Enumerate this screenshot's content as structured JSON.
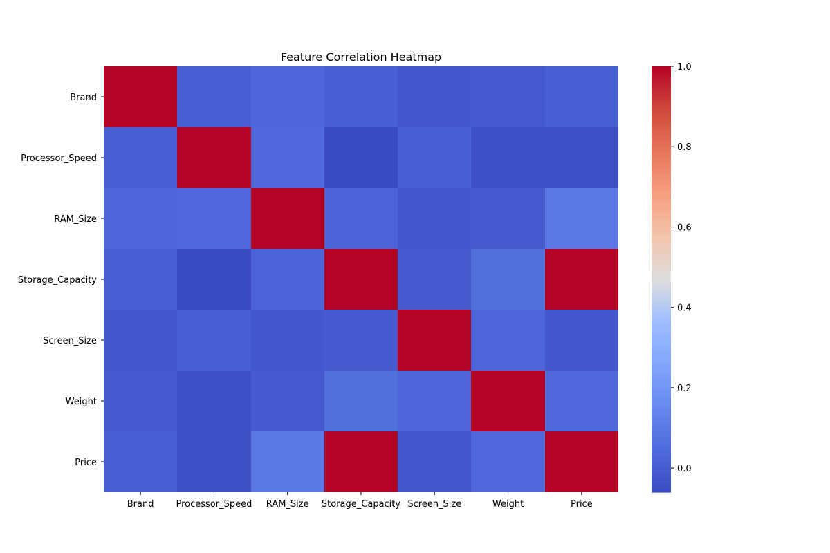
{
  "chart_data": {
    "type": "heatmap",
    "title": "Feature Correlation Heatmap",
    "xlabel": "",
    "ylabel": "",
    "colormap": "coolwarm",
    "x_categories": [
      "Brand",
      "Processor_Speed",
      "RAM_Size",
      "Storage_Capacity",
      "Screen_Size",
      "Weight",
      "Price"
    ],
    "y_categories": [
      "Brand",
      "Processor_Speed",
      "RAM_Size",
      "Storage_Capacity",
      "Screen_Size",
      "Weight",
      "Price"
    ],
    "matrix": [
      [
        1.0,
        0.01,
        0.03,
        0.01,
        -0.02,
        -0.01,
        0.01
      ],
      [
        0.01,
        1.0,
        0.04,
        -0.06,
        0.01,
        -0.05,
        -0.05
      ],
      [
        0.03,
        0.04,
        1.0,
        0.02,
        -0.02,
        -0.01,
        0.09
      ],
      [
        0.01,
        -0.06,
        0.02,
        1.0,
        -0.01,
        0.06,
        1.0
      ],
      [
        -0.02,
        0.01,
        -0.02,
        -0.01,
        1.0,
        0.03,
        -0.02
      ],
      [
        -0.01,
        -0.05,
        -0.01,
        0.06,
        0.03,
        1.0,
        0.04
      ],
      [
        0.01,
        -0.05,
        0.09,
        1.0,
        -0.02,
        0.04,
        1.0
      ]
    ],
    "colorbar": {
      "range": [
        -0.06,
        1.0
      ],
      "ticks": [
        0.0,
        0.2,
        0.4,
        0.6,
        0.8,
        1.0
      ],
      "tick_labels": [
        "0.0",
        "0.2",
        "0.4",
        "0.6",
        "0.8",
        "1.0"
      ]
    },
    "grid": false,
    "legend": "colorbar-right"
  }
}
